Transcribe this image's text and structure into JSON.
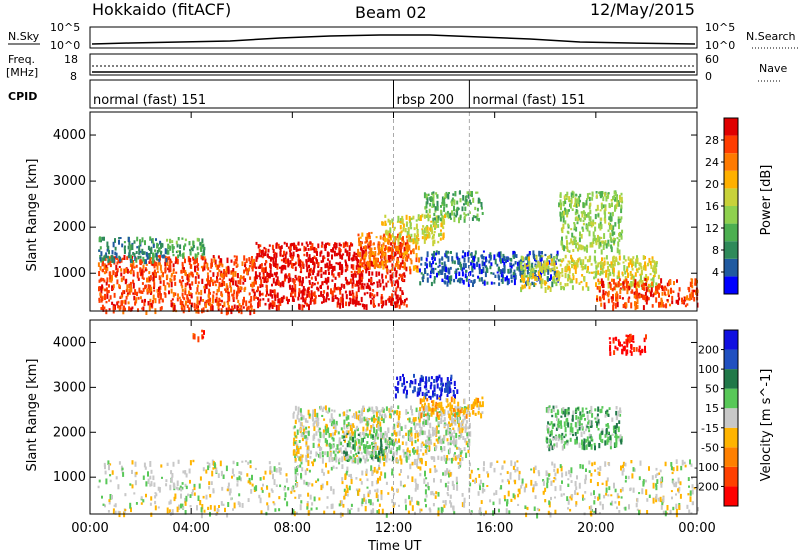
{
  "header": {
    "station": "Hokkaido (fitACF)",
    "beam": "Beam 02",
    "date": "12/May/2015"
  },
  "nsky_panel": {
    "left_label": "N.Sky",
    "right_label": "N.Search",
    "left_ticks": [
      "10^5",
      "10^0"
    ],
    "right_ticks": [
      "10^5",
      "10^0"
    ]
  },
  "freq_panel": {
    "left_label_1": "Freq.",
    "left_label_2": "[MHz]",
    "right_label": "Nave",
    "left_ticks": [
      "18",
      "8"
    ],
    "right_ticks": [
      "60",
      "0"
    ]
  },
  "cpid_panel": {
    "label": "CPID",
    "segments": [
      {
        "start_hour": 0,
        "end_hour": 12,
        "label": "normal (fast) 151"
      },
      {
        "start_hour": 12,
        "end_hour": 15,
        "label": "rbsp 200"
      },
      {
        "start_hour": 15,
        "end_hour": 24,
        "label": "normal (fast) 151"
      }
    ]
  },
  "time_axis": {
    "label": "Time UT",
    "ticks": [
      "00:00",
      "04:00",
      "08:00",
      "12:00",
      "16:00",
      "20:00",
      "00:00"
    ]
  },
  "chart_data": [
    {
      "type": "heatmap",
      "name": "power",
      "ylabel": "Slant Range [km]",
      "y_ticks": [
        "1000",
        "2000",
        "3000",
        "4000"
      ],
      "ylim": [
        180,
        4500
      ],
      "xlim_hours": [
        0,
        24
      ],
      "colorbar_label": "Power [dB]",
      "colorbar_ticks": [
        "28",
        "24",
        "20",
        "16",
        "12",
        "8",
        "4"
      ],
      "colormap": [
        "#0000ff",
        "#205aa0",
        "#2f8a5a",
        "#4caf50",
        "#8fd14f",
        "#c8d23a",
        "#ffb000",
        "#ff7a00",
        "#ff3c00",
        "#e00000"
      ],
      "regions": [
        {
          "t0": 0.3,
          "t1": 6.5,
          "r0": 200,
          "r1": 1400,
          "level": 8
        },
        {
          "t0": 6.5,
          "t1": 12.5,
          "r0": 300,
          "r1": 1700,
          "level": 9
        },
        {
          "t0": 10.5,
          "t1": 13.0,
          "r0": 1100,
          "r1": 1900,
          "level": 7
        },
        {
          "t0": 11.5,
          "t1": 14.0,
          "r0": 1700,
          "r1": 2300,
          "level": 5
        },
        {
          "t0": 13.2,
          "t1": 15.5,
          "r0": 2200,
          "r1": 2800,
          "level": 3
        },
        {
          "t0": 13.0,
          "t1": 18.5,
          "r0": 800,
          "r1": 1500,
          "level": 1
        },
        {
          "t0": 17.0,
          "t1": 22.5,
          "r0": 700,
          "r1": 1400,
          "level": 5
        },
        {
          "t0": 20.0,
          "t1": 24.0,
          "r0": 300,
          "r1": 900,
          "level": 8
        },
        {
          "t0": 0.3,
          "t1": 3.0,
          "r0": 1300,
          "r1": 1800,
          "level": 2
        },
        {
          "t0": 18.5,
          "t1": 21.0,
          "r0": 1500,
          "r1": 2800,
          "level": 4
        },
        {
          "t0": 3.0,
          "t1": 4.5,
          "r0": 1400,
          "r1": 1800,
          "level": 3
        }
      ]
    },
    {
      "type": "heatmap",
      "name": "velocity",
      "ylabel": "Slant Range [km]",
      "y_ticks": [
        "1000",
        "2000",
        "3000",
        "4000"
      ],
      "ylim": [
        180,
        4500
      ],
      "xlim_hours": [
        0,
        24
      ],
      "colorbar_label": "Velocity [m s^-1]",
      "colorbar_ticks": [
        "200",
        "100",
        "50",
        "15",
        "-15",
        "-50",
        "-100",
        "-200"
      ],
      "colormap": [
        "#ff0000",
        "#ff4000",
        "#ff8000",
        "#ffb400",
        "#c8c8c8",
        "#58c858",
        "#207848",
        "#2050c0",
        "#1010e0"
      ],
      "regions": [
        {
          "t0": 0.3,
          "t1": 24.0,
          "r0": 200,
          "r1": 1400,
          "level": 4
        },
        {
          "t0": 8.0,
          "t1": 15.0,
          "r0": 1400,
          "r1": 2600,
          "level": 4
        },
        {
          "t0": 10.0,
          "t1": 12.0,
          "r0": 1400,
          "r1": 2000,
          "level": 5
        },
        {
          "t0": 12.0,
          "t1": 14.5,
          "r0": 2800,
          "r1": 3300,
          "level": 8
        },
        {
          "t0": 13.0,
          "t1": 15.5,
          "r0": 2400,
          "r1": 2800,
          "level": 3
        },
        {
          "t0": 18.0,
          "t1": 21.0,
          "r0": 1700,
          "r1": 2600,
          "level": 5
        },
        {
          "t0": 20.5,
          "t1": 22.0,
          "r0": 3800,
          "r1": 4200,
          "level": 0
        },
        {
          "t0": 4.0,
          "t1": 4.5,
          "r0": 4100,
          "r1": 4300,
          "level": 1
        }
      ]
    }
  ]
}
